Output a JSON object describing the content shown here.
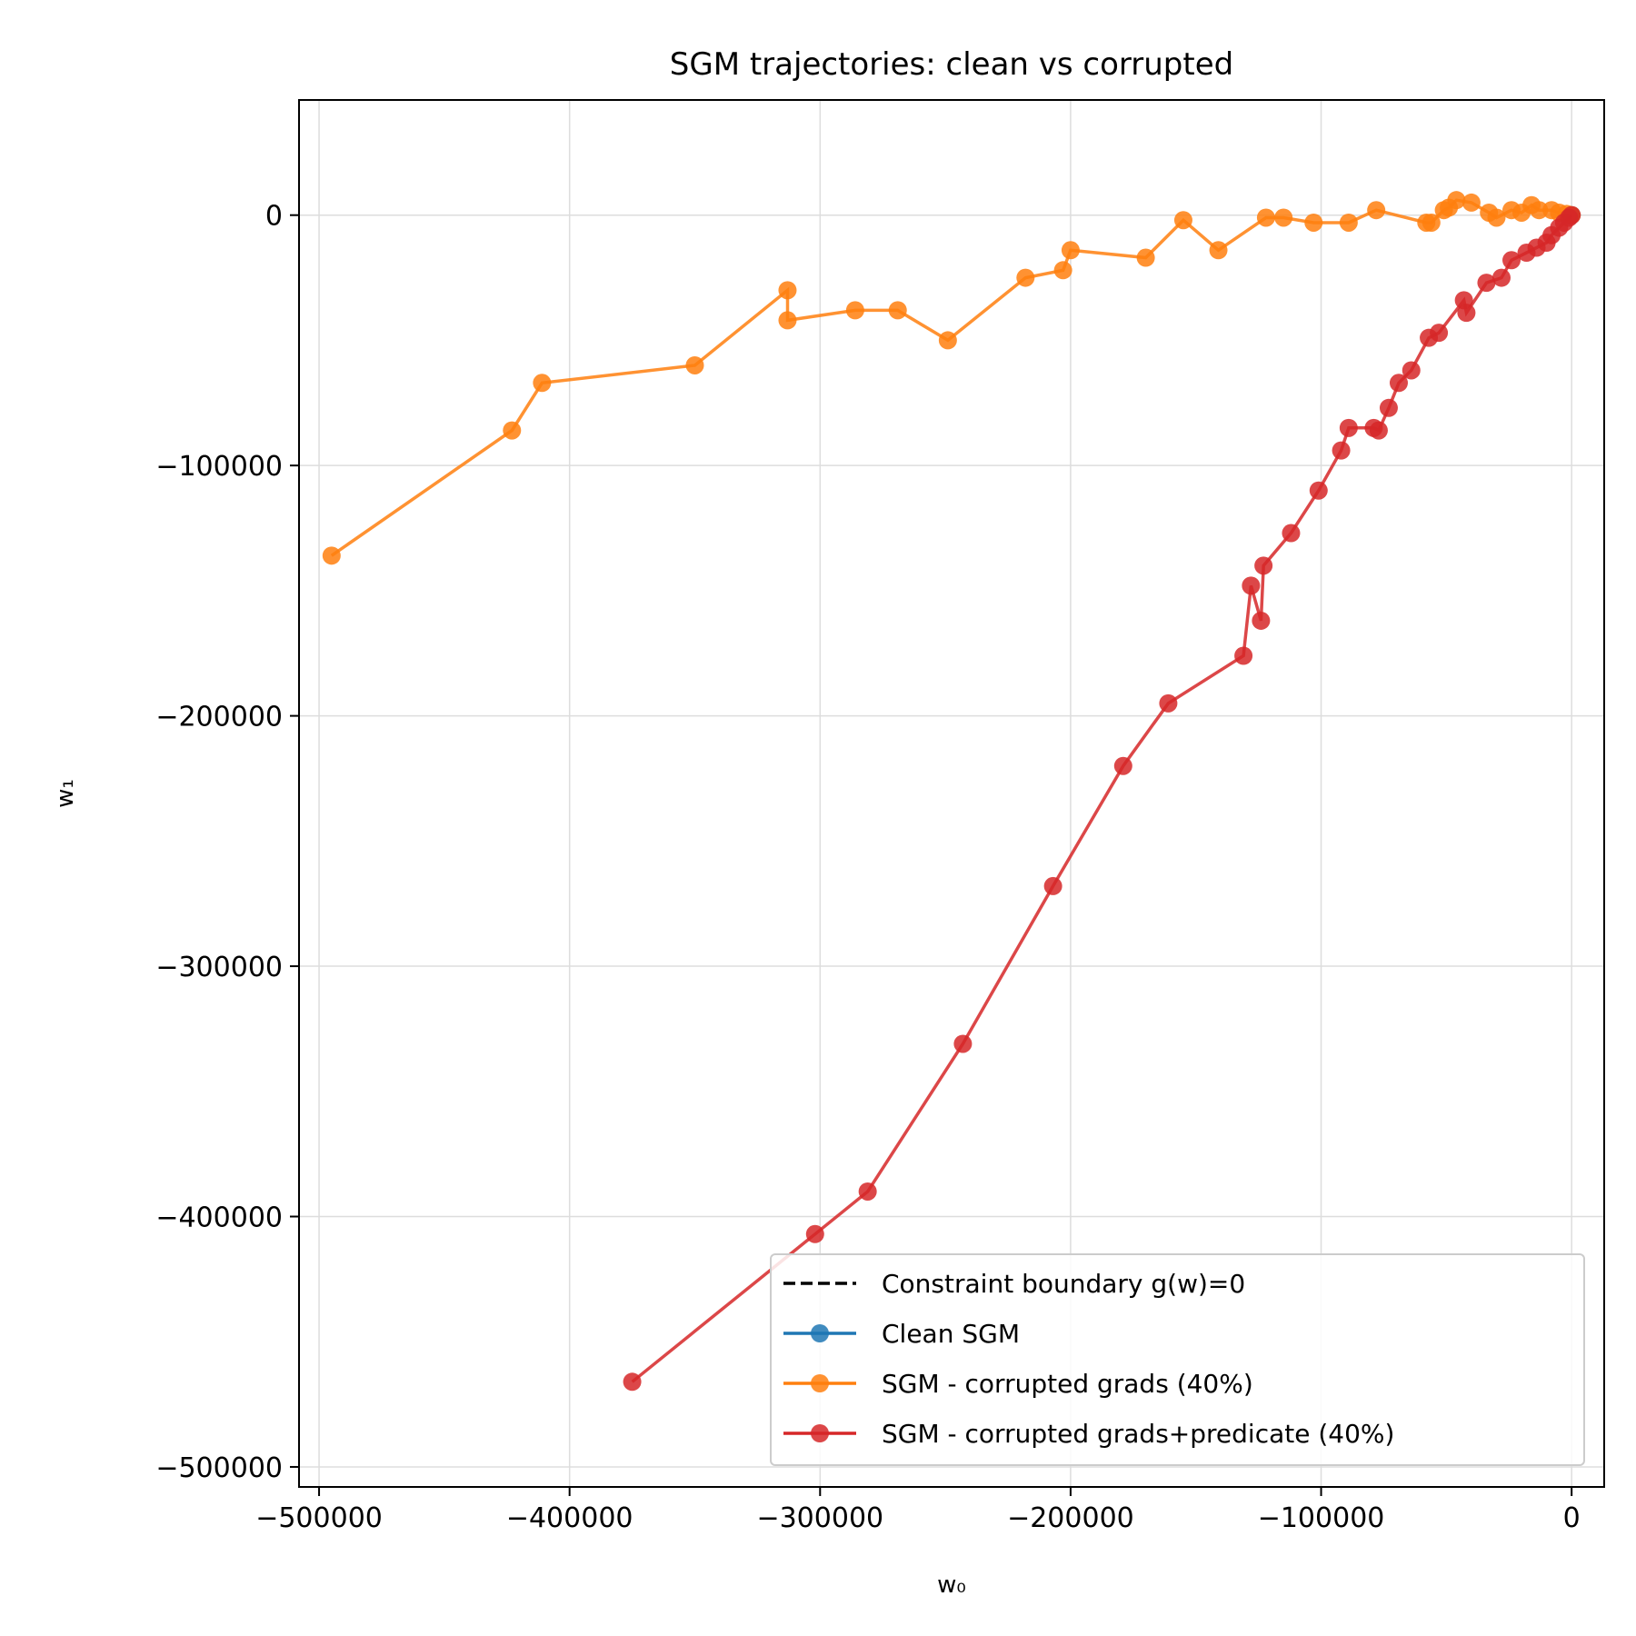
{
  "chart_data": {
    "type": "line",
    "title": "SGM trajectories: clean vs corrupted",
    "xlabel": "w₀",
    "ylabel": "w₁",
    "xlim": [
      -508000,
      13000
    ],
    "ylim": [
      -508000,
      46000
    ],
    "xticks": [
      -500000,
      -400000,
      -300000,
      -200000,
      -100000,
      0
    ],
    "xtick_labels": [
      "−500000",
      "−400000",
      "−300000",
      "−200000",
      "−100000",
      "0"
    ],
    "yticks": [
      0,
      -100000,
      -200000,
      -300000,
      -400000,
      -500000
    ],
    "ytick_labels": [
      "0",
      "−100000",
      "−200000",
      "−300000",
      "−400000",
      "−500000"
    ],
    "grid": true,
    "legend_position": "lower right",
    "legend": [
      {
        "label": "Constraint boundary g(w)=0",
        "color": "#000000",
        "style": "dashed",
        "marker": false
      },
      {
        "label": "Clean SGM",
        "color": "#1f77b4",
        "style": "solid",
        "marker": true
      },
      {
        "label": "SGM - corrupted grads (40%)",
        "color": "#ff7f0e",
        "style": "solid",
        "marker": true
      },
      {
        "label": "SGM - corrupted grads+predicate (40%)",
        "color": "#d62728",
        "style": "solid",
        "marker": true
      }
    ],
    "series": [
      {
        "name": "Clean SGM",
        "color": "#1f77b4",
        "points": [
          [
            0,
            0
          ],
          [
            -300,
            -200
          ]
        ]
      },
      {
        "name": "SGM - corrupted grads (40%)",
        "color": "#ff7f0e",
        "points": [
          [
            -495000,
            -136000
          ],
          [
            -423000,
            -86000
          ],
          [
            -411000,
            -67000
          ],
          [
            -350000,
            -60000
          ],
          [
            -313000,
            -30000
          ],
          [
            -313000,
            -42000
          ],
          [
            -286000,
            -38000
          ],
          [
            -269000,
            -38000
          ],
          [
            -249000,
            -50000
          ],
          [
            -218000,
            -25000
          ],
          [
            -203000,
            -22000
          ],
          [
            -200000,
            -14000
          ],
          [
            -170000,
            -17000
          ],
          [
            -155000,
            -2000
          ],
          [
            -141000,
            -14000
          ],
          [
            -122000,
            -1000
          ],
          [
            -115000,
            -1000
          ],
          [
            -103000,
            -3000
          ],
          [
            -89000,
            -3000
          ],
          [
            -78000,
            2000
          ],
          [
            -58000,
            -3000
          ],
          [
            -56000,
            -3000
          ],
          [
            -51000,
            2000
          ],
          [
            -49000,
            3000
          ],
          [
            -46000,
            6000
          ],
          [
            -40000,
            5000
          ],
          [
            -33000,
            1000
          ],
          [
            -30000,
            -1000
          ],
          [
            -24000,
            2000
          ],
          [
            -20000,
            1000
          ],
          [
            -16000,
            4000
          ],
          [
            -13000,
            2000
          ],
          [
            -8000,
            2000
          ],
          [
            -5000,
            1000
          ],
          [
            -2000,
            500
          ],
          [
            0,
            0
          ]
        ]
      },
      {
        "name": "SGM - corrupted grads+predicate (40%)",
        "color": "#d62728",
        "points": [
          [
            -375000,
            -466000
          ],
          [
            -302000,
            -407000
          ],
          [
            -281000,
            -390000
          ],
          [
            -243000,
            -331000
          ],
          [
            -207000,
            -268000
          ],
          [
            -179000,
            -220000
          ],
          [
            -161000,
            -195000
          ],
          [
            -131000,
            -176000
          ],
          [
            -128000,
            -148000
          ],
          [
            -124000,
            -162000
          ],
          [
            -123000,
            -140000
          ],
          [
            -112000,
            -127000
          ],
          [
            -101000,
            -110000
          ],
          [
            -92000,
            -94000
          ],
          [
            -89000,
            -85000
          ],
          [
            -79000,
            -85000
          ],
          [
            -77000,
            -86000
          ],
          [
            -73000,
            -77000
          ],
          [
            -69000,
            -67000
          ],
          [
            -64000,
            -62000
          ],
          [
            -57000,
            -49000
          ],
          [
            -53000,
            -47000
          ],
          [
            -43000,
            -34000
          ],
          [
            -42000,
            -39000
          ],
          [
            -34000,
            -27000
          ],
          [
            -28000,
            -25000
          ],
          [
            -24000,
            -18000
          ],
          [
            -18000,
            -15000
          ],
          [
            -14000,
            -13000
          ],
          [
            -10000,
            -11000
          ],
          [
            -8000,
            -8000
          ],
          [
            -5000,
            -5000
          ],
          [
            -3000,
            -3000
          ],
          [
            -1000,
            -1000
          ],
          [
            0,
            0
          ]
        ]
      }
    ]
  }
}
